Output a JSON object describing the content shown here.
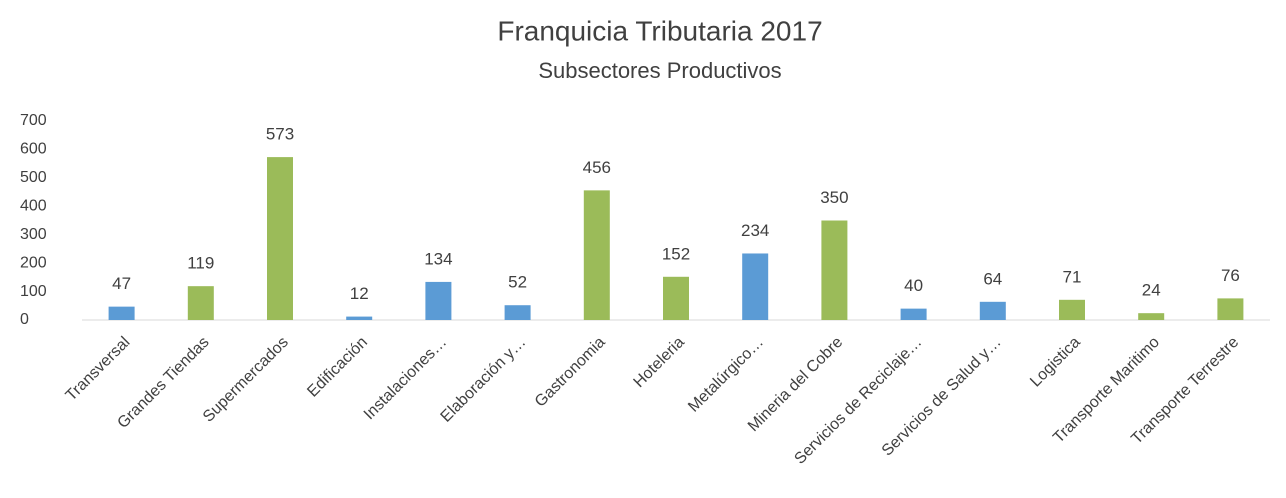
{
  "chart_data": {
    "type": "bar",
    "title": "Franquicia Tributaria 2017",
    "subtitle": "Subsectores Productivos",
    "categories": [
      "Transversal",
      "Grandes Tiendas",
      "Supermercados",
      "Edificación",
      "Instalaciones…",
      "Elaboración y…",
      "Gastronomia",
      "Hoteleria",
      "Metalúrgico…",
      "Mineria del Cobre",
      "Servicios de Reciclaje…",
      "Servicios de Salud y…",
      "Logistica",
      "Transporte Maritimo",
      "Transporte Terrestre"
    ],
    "values": [
      47,
      119,
      573,
      12,
      134,
      52,
      456,
      152,
      234,
      350,
      40,
      64,
      71,
      24,
      76
    ],
    "colors": [
      "#5b9bd5",
      "#9bbb59",
      "#9bbb59",
      "#5b9bd5",
      "#5b9bd5",
      "#5b9bd5",
      "#9bbb59",
      "#9bbb59",
      "#5b9bd5",
      "#9bbb59",
      "#5b9bd5",
      "#5b9bd5",
      "#9bbb59",
      "#9bbb59",
      "#9bbb59"
    ],
    "ylim": [
      0,
      700
    ],
    "yticks": [
      0,
      100,
      200,
      300,
      400,
      500,
      600,
      700
    ],
    "grid": false
  }
}
